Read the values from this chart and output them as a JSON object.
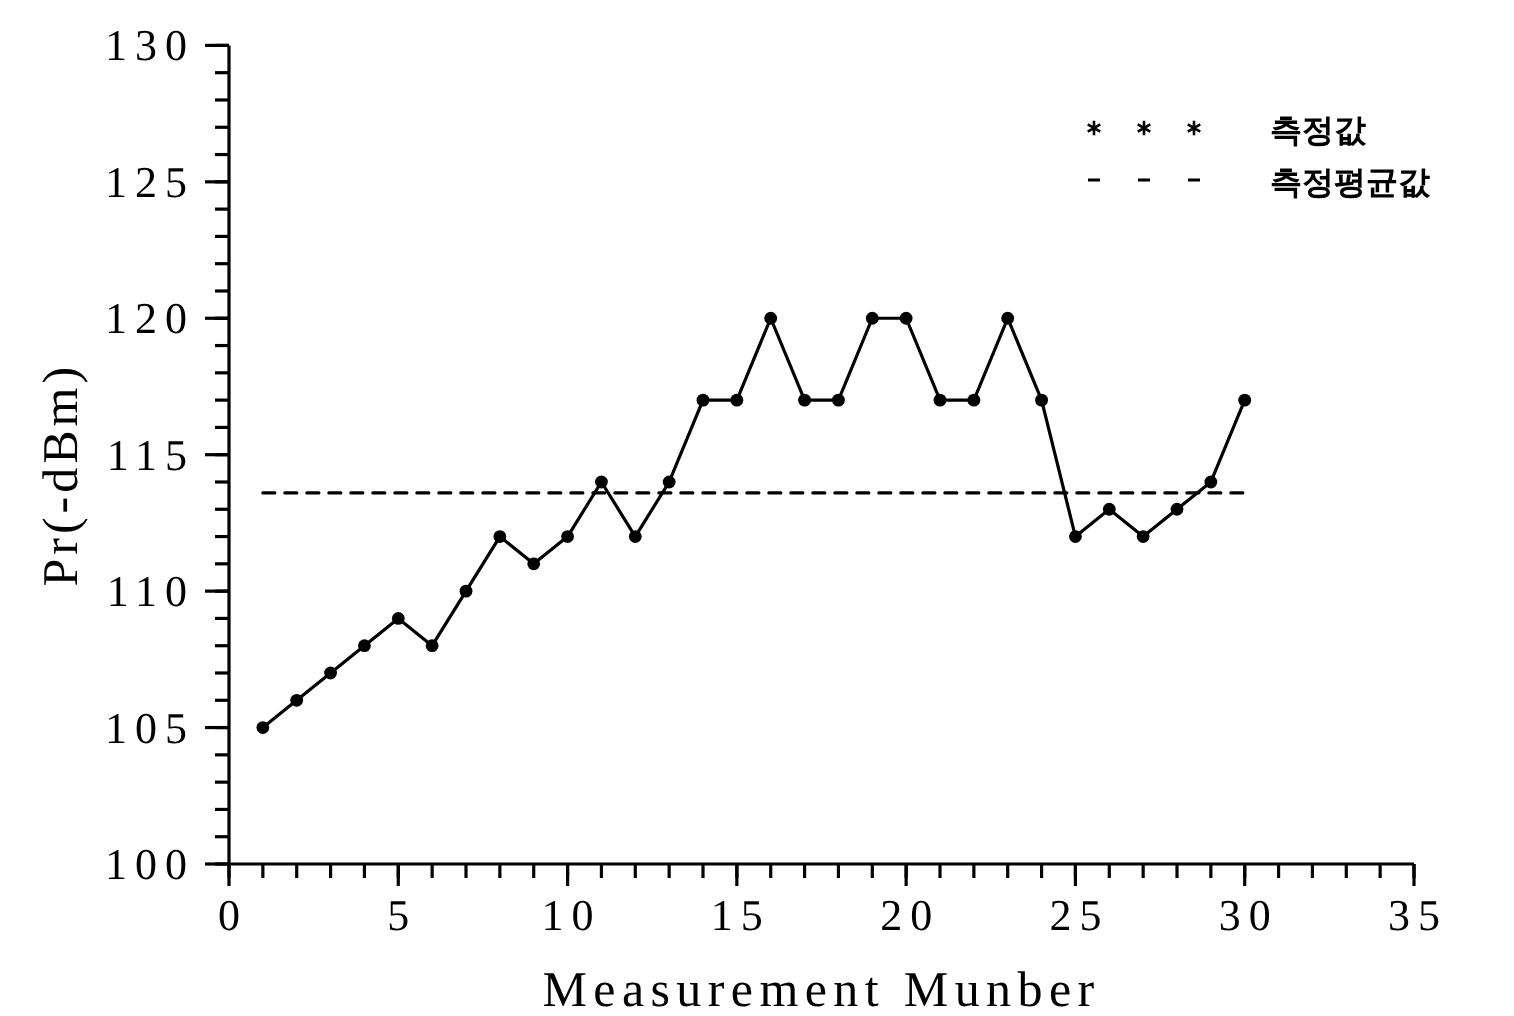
{
  "chart_data": {
    "type": "line",
    "xlabel": "Measurement Munber",
    "ylabel": "Pr(-dBm)",
    "xlim": [
      0,
      35
    ],
    "xticks": [
      0,
      5,
      10,
      15,
      20,
      25,
      30,
      35
    ],
    "ylim": [
      100,
      130
    ],
    "yticks": [
      100,
      105,
      110,
      115,
      120,
      125,
      130
    ],
    "grid": false,
    "legend": "top right",
    "series": [
      {
        "name": "측정값",
        "color": "#000000",
        "marker": "circle",
        "line_style": "solid",
        "x": [
          1,
          2,
          3,
          4,
          5,
          6,
          7,
          8,
          9,
          10,
          11,
          12,
          13,
          14,
          15,
          16,
          17,
          18,
          19,
          20,
          21,
          22,
          23,
          24,
          25,
          26,
          27,
          28,
          29,
          30
        ],
        "values": [
          105,
          106,
          107,
          108,
          109,
          108,
          110,
          112,
          111,
          112,
          114,
          112,
          114,
          117,
          117,
          120,
          117,
          117,
          120,
          120,
          117,
          117,
          120,
          117,
          112,
          113,
          112,
          113,
          114,
          117
        ]
      },
      {
        "name": "측정평균값",
        "color": "#000000",
        "marker": "none",
        "line_style": "dashed",
        "x": [
          1,
          30
        ],
        "values": [
          113.6,
          113.6
        ]
      }
    ]
  }
}
